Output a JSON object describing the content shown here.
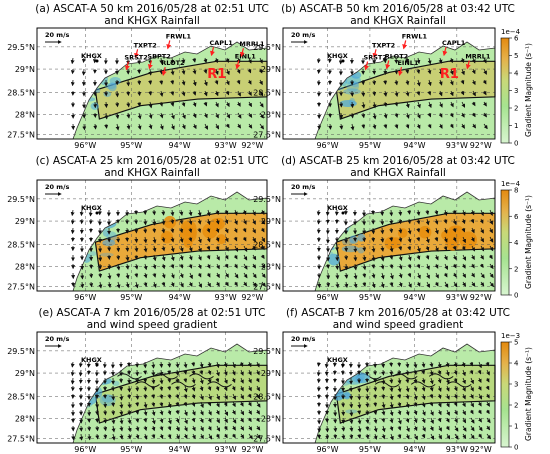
{
  "panels": [
    {
      "title_line1": "(a) ASCAT-A 50 km 2016/05/28 at 02:51 UTC",
      "title_line2": "and KHGX Rainfall",
      "kind": "coarse",
      "stations": true,
      "colorbar": false
    },
    {
      "title_line1": "(b) ASCAT-B 50 km 2016/05/28 at 03:42 UTC",
      "title_line2": "and KHGX Rainfall",
      "kind": "coarse",
      "stations": true,
      "colorbar": true
    },
    {
      "title_line1": "(c) ASCAT-A 25 km 2016/05/28 at 02:51 UTC",
      "title_line2": "and KHGX Rainfall",
      "kind": "medium",
      "stations": false,
      "colorbar": false
    },
    {
      "title_line1": "(d) ASCAT-B 25 km 2016/05/28 at 03:42 UTC",
      "title_line2": "and KHGX Rainfall",
      "kind": "medium",
      "stations": false,
      "colorbar": true
    },
    {
      "title_line1": "(e) ASCAT-A 7 km 2016/05/28 at 02:51 UTC",
      "title_line2": "and wind speed gradient",
      "kind": "fine",
      "stations": false,
      "colorbar": false
    },
    {
      "title_line1": "(f) ASCAT-B 7 km 2016/05/28 at 03:42 UTC",
      "title_line2": "and wind speed gradient",
      "kind": "fine",
      "stations": false,
      "colorbar": true
    }
  ],
  "axes": {
    "lon_ticks": [
      "96°W",
      "95°W",
      "94°W",
      "93°W",
      "92°W"
    ],
    "lat_ticks": [
      "29.5°N",
      "29°N",
      "28.5°N",
      "28°N",
      "27.5°N"
    ]
  },
  "scale_arrow_label": "20 m/s",
  "radar_label": "KHGX",
  "region_label": "R1",
  "stations_a": [
    "FRWL1",
    "TXPT2",
    "CAPL1",
    "SRST2",
    "SBPT2",
    "RLOT2",
    "EINL1",
    "MRRL1"
  ],
  "stations_b": [
    "FRWL1",
    "TXPT2",
    "CAPL1",
    "SRST2",
    "RLOT2",
    "EINL1",
    "MRRL1"
  ],
  "colorbars": [
    {
      "exponent": "1e−4",
      "ticks": [
        "0",
        "1",
        "2",
        "3",
        "4",
        "5",
        "6"
      ],
      "label": "Gradient Magnitude (s⁻¹)"
    },
    {
      "exponent": "1e−4",
      "ticks": [
        "0",
        "2",
        "4",
        "6",
        "8"
      ],
      "label": "Gradient Magnitude (s⁻¹)"
    },
    {
      "exponent": "1e−3",
      "ticks": [
        "0",
        "1",
        "2",
        "3",
        "4",
        "5"
      ],
      "label": "Gradient Magnitude (s⁻¹)"
    }
  ],
  "colors": {
    "land": "#ffffff",
    "gradient_low": "#9be08a",
    "gradient_mid": "#c8d878",
    "gradient_high": "#e8a020",
    "rain": "#4fa8dc",
    "rain_contour": "#1a2fd0",
    "contour": "#111111",
    "station": "#ff2020"
  }
}
